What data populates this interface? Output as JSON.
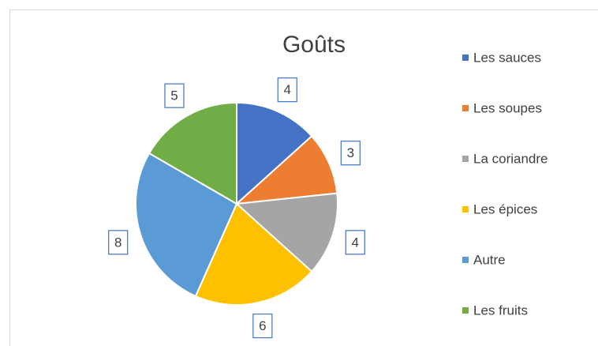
{
  "chart_data": {
    "type": "pie",
    "title": "Goûts",
    "categories": [
      "Les sauces",
      "Les soupes",
      "La coriandre",
      "Les épices",
      "Autre",
      "Les fruits"
    ],
    "values": [
      4,
      3,
      4,
      6,
      8,
      5
    ],
    "colors": [
      "#4472c4",
      "#ed7d31",
      "#a5a5a5",
      "#ffc000",
      "#5b9bd5",
      "#70ad47"
    ],
    "legend": "right"
  }
}
